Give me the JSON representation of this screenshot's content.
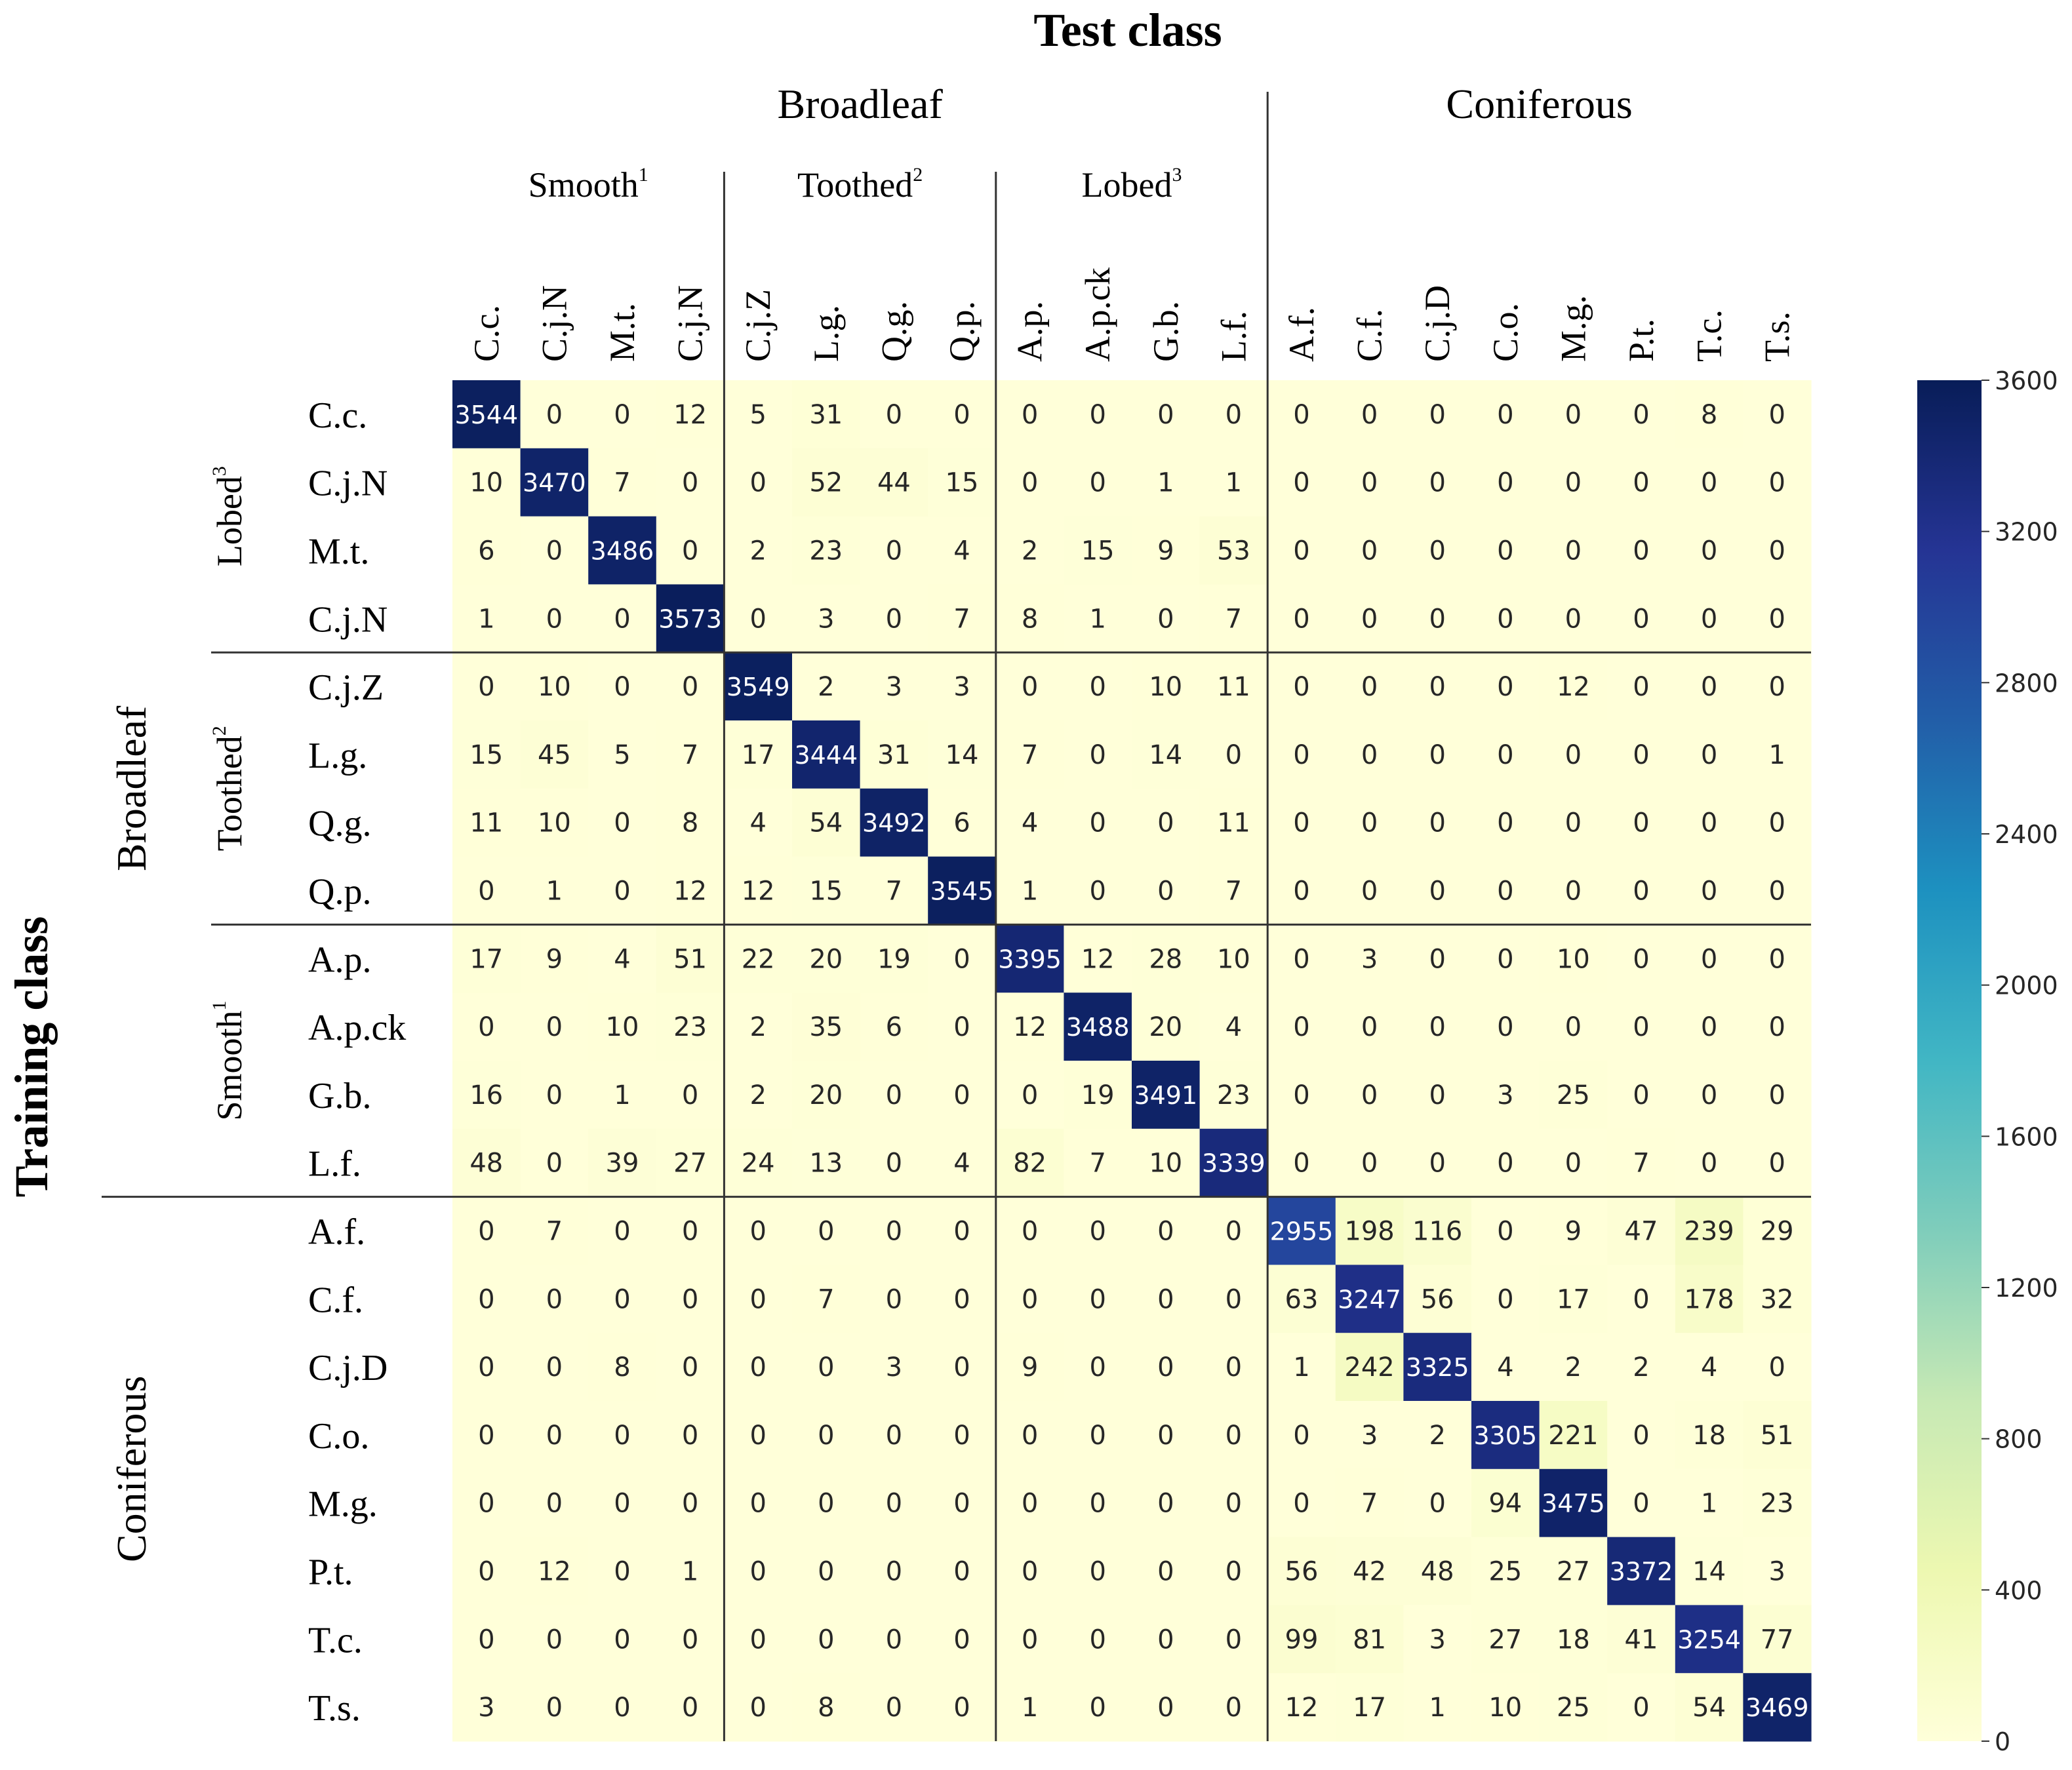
{
  "chart_data": {
    "type": "heatmap",
    "title": "Test class",
    "xlabel": "Test class",
    "ylabel": "Training class",
    "x_groups": [
      {
        "label": "Broadleaf",
        "span": [
          0,
          11
        ]
      },
      {
        "label": "Coniferous",
        "span": [
          12,
          19
        ]
      }
    ],
    "x_subgroups": [
      {
        "label": "Smooth",
        "sup": "1",
        "span": [
          0,
          3
        ]
      },
      {
        "label": "Toothed",
        "sup": "2",
        "span": [
          4,
          7
        ]
      },
      {
        "label": "Lobed",
        "sup": "3",
        "span": [
          8,
          11
        ]
      }
    ],
    "y_groups": [
      {
        "label": "Broadleaf",
        "span": [
          0,
          11
        ]
      },
      {
        "label": "Coniferous",
        "span": [
          12,
          19
        ]
      }
    ],
    "y_subgroups": [
      {
        "label": "Lobed",
        "sup": "3",
        "span": [
          0,
          3
        ]
      },
      {
        "label": "Toothed",
        "sup": "2",
        "span": [
          4,
          7
        ]
      },
      {
        "label": "Smooth",
        "sup": "1",
        "span": [
          8,
          11
        ]
      }
    ],
    "x_categories": [
      "C.c.",
      "C.j.N",
      "M.t.",
      "C.j.N",
      "C.j.Z",
      "L.g.",
      "Q.g.",
      "Q.p.",
      "A.p.",
      "A.p.ck",
      "G.b.",
      "L.f.",
      "A.f.",
      "C.f.",
      "C.j.D",
      "C.o.",
      "M.g.",
      "P.t.",
      "T.c.",
      "T.s."
    ],
    "y_categories": [
      "C.c.",
      "C.j.N",
      "M.t.",
      "C.j.N",
      "C.j.Z",
      "L.g.",
      "Q.g.",
      "Q.p.",
      "A.p.",
      "A.p.ck",
      "G.b.",
      "L.f.",
      "A.f.",
      "C.f.",
      "C.j.D",
      "C.o.",
      "M.g.",
      "P.t.",
      "T.c.",
      "T.s."
    ],
    "values": [
      [
        3544,
        0,
        0,
        12,
        5,
        31,
        0,
        0,
        0,
        0,
        0,
        0,
        0,
        0,
        0,
        0,
        0,
        0,
        8,
        0
      ],
      [
        10,
        3470,
        7,
        0,
        0,
        52,
        44,
        15,
        0,
        0,
        1,
        1,
        0,
        0,
        0,
        0,
        0,
        0,
        0,
        0
      ],
      [
        6,
        0,
        3486,
        0,
        2,
        23,
        0,
        4,
        2,
        15,
        9,
        53,
        0,
        0,
        0,
        0,
        0,
        0,
        0,
        0
      ],
      [
        1,
        0,
        0,
        3573,
        0,
        3,
        0,
        7,
        8,
        1,
        0,
        7,
        0,
        0,
        0,
        0,
        0,
        0,
        0,
        0
      ],
      [
        0,
        10,
        0,
        0,
        3549,
        2,
        3,
        3,
        0,
        0,
        10,
        11,
        0,
        0,
        0,
        0,
        12,
        0,
        0,
        0
      ],
      [
        15,
        45,
        5,
        7,
        17,
        3444,
        31,
        14,
        7,
        0,
        14,
        0,
        0,
        0,
        0,
        0,
        0,
        0,
        0,
        1
      ],
      [
        11,
        10,
        0,
        8,
        4,
        54,
        3492,
        6,
        4,
        0,
        0,
        11,
        0,
        0,
        0,
        0,
        0,
        0,
        0,
        0
      ],
      [
        0,
        1,
        0,
        12,
        12,
        15,
        7,
        3545,
        1,
        0,
        0,
        7,
        0,
        0,
        0,
        0,
        0,
        0,
        0,
        0
      ],
      [
        17,
        9,
        4,
        51,
        22,
        20,
        19,
        0,
        3395,
        12,
        28,
        10,
        0,
        3,
        0,
        0,
        10,
        0,
        0,
        0
      ],
      [
        0,
        0,
        10,
        23,
        2,
        35,
        6,
        0,
        12,
        3488,
        20,
        4,
        0,
        0,
        0,
        0,
        0,
        0,
        0,
        0
      ],
      [
        16,
        0,
        1,
        0,
        2,
        20,
        0,
        0,
        0,
        19,
        3491,
        23,
        0,
        0,
        0,
        3,
        25,
        0,
        0,
        0
      ],
      [
        48,
        0,
        39,
        27,
        24,
        13,
        0,
        4,
        82,
        7,
        10,
        3339,
        0,
        0,
        0,
        0,
        0,
        7,
        0,
        0
      ],
      [
        0,
        7,
        0,
        0,
        0,
        0,
        0,
        0,
        0,
        0,
        0,
        0,
        2955,
        198,
        116,
        0,
        9,
        47,
        239,
        29
      ],
      [
        0,
        0,
        0,
        0,
        0,
        7,
        0,
        0,
        0,
        0,
        0,
        0,
        63,
        3247,
        56,
        0,
        17,
        0,
        178,
        32
      ],
      [
        0,
        0,
        8,
        0,
        0,
        0,
        3,
        0,
        9,
        0,
        0,
        0,
        1,
        242,
        3325,
        4,
        2,
        2,
        4,
        0
      ],
      [
        0,
        0,
        0,
        0,
        0,
        0,
        0,
        0,
        0,
        0,
        0,
        0,
        0,
        3,
        2,
        3305,
        221,
        0,
        18,
        51
      ],
      [
        0,
        0,
        0,
        0,
        0,
        0,
        0,
        0,
        0,
        0,
        0,
        0,
        0,
        7,
        0,
        94,
        3475,
        0,
        1,
        23
      ],
      [
        0,
        12,
        0,
        1,
        0,
        0,
        0,
        0,
        0,
        0,
        0,
        0,
        56,
        42,
        48,
        25,
        27,
        3372,
        14,
        3
      ],
      [
        0,
        0,
        0,
        0,
        0,
        0,
        0,
        0,
        0,
        0,
        0,
        0,
        99,
        81,
        3,
        27,
        18,
        41,
        3254,
        77
      ],
      [
        3,
        0,
        0,
        0,
        0,
        8,
        0,
        0,
        1,
        0,
        0,
        0,
        12,
        17,
        1,
        10,
        25,
        0,
        54,
        3469
      ]
    ],
    "colorbar": {
      "min": 0,
      "max": 3600,
      "ticks": [
        0,
        400,
        800,
        1200,
        1600,
        2000,
        2400,
        2800,
        3200,
        3600
      ],
      "colormap": "YlGnBu",
      "colors": [
        "#ffffd9",
        "#edf8b1",
        "#c7e9b4",
        "#7fcdbb",
        "#41b6c4",
        "#1d91c0",
        "#225ea8",
        "#253494",
        "#081d58"
      ]
    },
    "grid": false
  }
}
